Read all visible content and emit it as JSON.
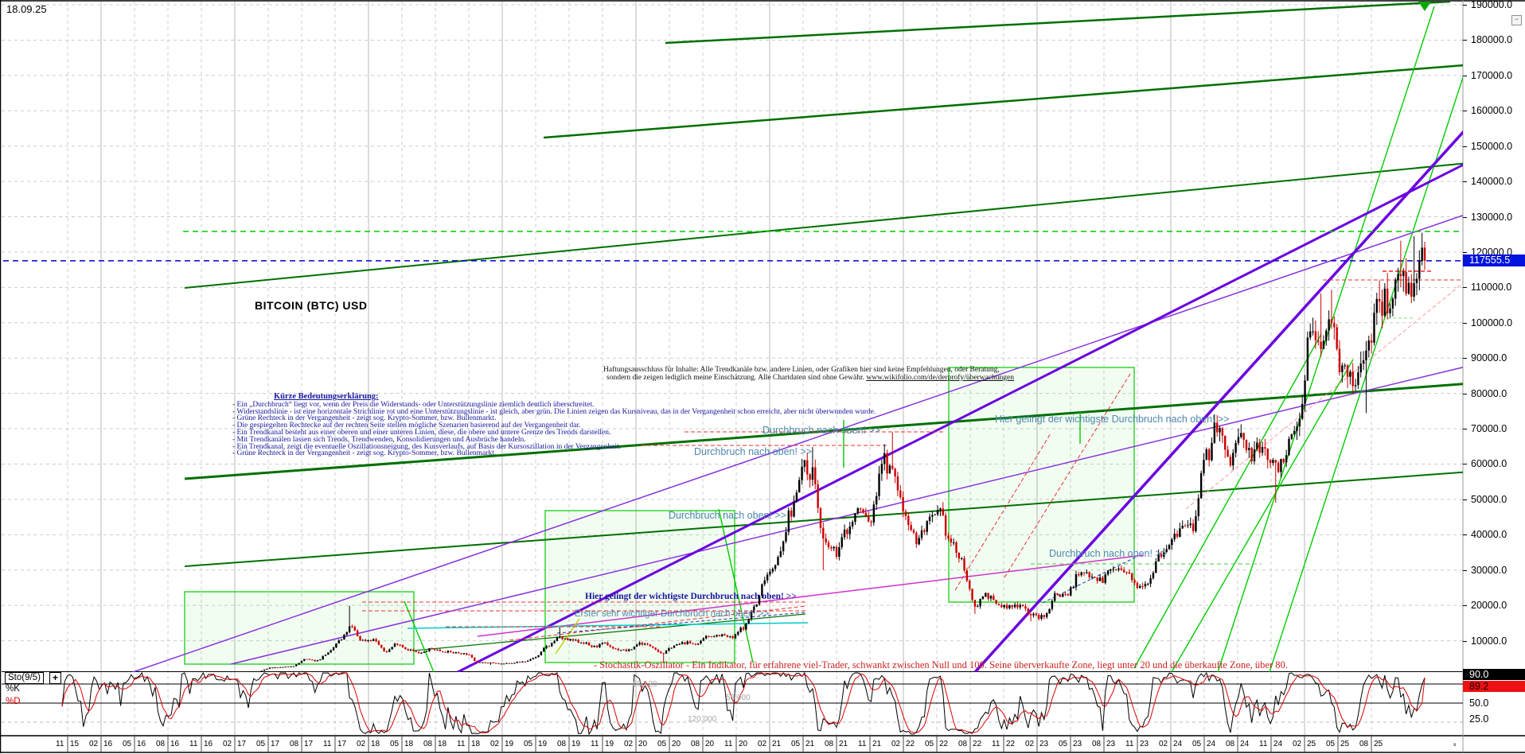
{
  "meta": {
    "date_label": "18.09.25",
    "symbol": "BITCOIN (BTC) USD",
    "current_price": "117555.5",
    "collapse_icon": "−"
  },
  "legend_block": {
    "title": "Kürze Bedeutungserklärung:",
    "lines": [
      "- Ein „Durchbruch“ liegt vor, wenn der Preis die Widerstands- oder Unterstützungslinie ziemlich deutlich überschreitet.",
      "- Widerstandslinie - ist eine horizontale Strichlinie rot und eine Unterstützungslinie - ist gleich, aber grün. Die Linien zeigen das Kursniveau, das in der Vergangenheit schon erreicht, aber nicht überwunden wurde.",
      "- Grüne Rechteck in der Vergangenheit - zeigt sog. Krypto-Sommer, bzw. Bullenmarkt.",
      "- Die gespiegelten Rechtecke auf der rechten Seite stellen mögliche Szenarien basierend auf der Vergangenheit dar.",
      "- Ein Trendkanal besteht aus einer oberen und einer unteren Linien, diese, die obere und untere Grenze des Trends darstellen.",
      "- Mit Trendkanälen lassen sich Trends, Trendwenden, Konsolidierungen und Ausbrüche handeln.",
      "- Ein Trendkanal, zeigt die eventuelle Oszillationsneigung, des Kursverlaufs, auf Basis der Kursoszillation in der Vergangenheit.",
      "- Grüne Rechteck in der Vergangenheit - zeigt sog. Krypto-Sommer, bzw. Bullenmarkt."
    ]
  },
  "disclaimer": {
    "line1": "Haftungsausschluss für Inhalte: Alle Trendkanäle bzw. andere Linien, oder Grafiken hier sind keine Empfehlungen, oder Beratung,",
    "line2a": "sondern die zeigen lediglich meine  Einschätzung. Alle Chartdaten sind ohne Gewähr.  ",
    "line2b": "www.wikifolio.com/de/derprofy/überwachungen"
  },
  "annotations": {
    "a1": "Hier gelingt der wichtigste Durchbruch nach oben! >>",
    "a2": "Durchbruch nach oben! >>",
    "a3": "Durchbruch nach oben! >>",
    "a4": "Durchbruch nach oben! >>",
    "a5": "Durchbruch nach oben! >>",
    "a6": "Hier gelingt der wichtigste Durchbruch nach oben! >>",
    "a7": "Erster sehr wichtiger Durchbruch nach oben! >>"
  },
  "stoch_note": "- Stochastik-Oszillator - Ein Indikator, für erfahrene viel-Trader, schwankt zwischen Null und 100. Seine überverkaufte Zone, liegt unter 20 und die überkaufte Zone, über 80.",
  "indicator": {
    "label": "Sto(9/5)",
    "plus": "+",
    "k_label": "%K",
    "d_label": "%D",
    "k_value": "90.0",
    "d_value": "89.2",
    "tick_mid": "50.0",
    "tick_low": "25.0",
    "faint_values": [
      "60.120",
      "56.000",
      "120.000"
    ],
    "minus": "-"
  },
  "axis": {
    "price_ticks": [
      "190000.0",
      "180000.0",
      "170000.0",
      "160000.0",
      "150000.0",
      "140000.0",
      "130000.0",
      "120000.0",
      "110000.0",
      "100000.0",
      "90000.0",
      "80000.0",
      "70000.0",
      "60000.0",
      "50000.0",
      "40000.0",
      "30000.0",
      "20000.0",
      "10000.0"
    ],
    "x_labels": [
      "11/15",
      "02/16",
      "05/16",
      "08/16",
      "11/16",
      "02/17",
      "05/17",
      "08/17",
      "11/17",
      "02/18",
      "05/18",
      "08/18",
      "11/18",
      "02/19",
      "05/19",
      "08/19",
      "11/19",
      "02/20",
      "05/20",
      "08/20",
      "11/20",
      "02/21",
      "05/21",
      "08/21",
      "11/21",
      "02/22",
      "05/22",
      "08/22",
      "11/22",
      "02/23",
      "05/23",
      "08/23",
      "11/23",
      "02/24",
      "05/24",
      "08/24",
      "11/24",
      "02/25",
      "05/25",
      "08/25"
    ],
    "x_end_label": "-"
  },
  "colors": {
    "grid": "#cccccc",
    "grid_year": "#b8b8b8",
    "dark_green": "#007000",
    "bright_green": "#00cc00",
    "purple_thick": "#6a00e0",
    "purple_thin": "#8833dd",
    "magenta": "#cc33cc",
    "cyan": "#00cccc",
    "yellow": "#cccc00",
    "red_dash": "#e83030",
    "pink_dash": "#ff9999",
    "navy_dash": "#2233bb",
    "candle_up": "#000000",
    "candle_down": "#cc0000",
    "price_line_blue": "#0000cc",
    "level_green": "#00cc00",
    "stoch_k": "#000000",
    "stoch_d": "#dd0000"
  },
  "chart_data": {
    "type": "candlestick",
    "title": "BITCOIN (BTC) USD",
    "interval": "weekly (generated from monthly anchors)",
    "x_range": [
      "11/15",
      "09/25"
    ],
    "ylim": [
      0,
      192000
    ],
    "y_tick_step": 10000,
    "current_price": 117555.5,
    "levels": {
      "blue_dashed_current": 117555.5,
      "green_dashed_resistance": 125850,
      "stoch_lines": [
        80,
        50,
        20
      ]
    },
    "monthly": [
      [
        "11/15",
        378
      ],
      [
        "12/15",
        430
      ],
      [
        "01/16",
        368
      ],
      [
        "02/16",
        437
      ],
      [
        "03/16",
        416
      ],
      [
        "04/16",
        448
      ],
      [
        "05/16",
        531
      ],
      [
        "06/16",
        673
      ],
      [
        "07/16",
        624
      ],
      [
        "08/16",
        575
      ],
      [
        "09/16",
        610
      ],
      [
        "10/16",
        700
      ],
      [
        "11/16",
        745
      ],
      [
        "12/16",
        963
      ],
      [
        "01/17",
        970
      ],
      [
        "02/17",
        1180
      ],
      [
        "03/17",
        1080
      ],
      [
        "04/17",
        1350
      ],
      [
        "05/17",
        2300
      ],
      [
        "06/17",
        2480
      ],
      [
        "07/17",
        2875
      ],
      [
        "08/17",
        4703
      ],
      [
        "09/17",
        4360
      ],
      [
        "10/17",
        6450
      ],
      [
        "11/17",
        9916
      ],
      [
        "12/17",
        13850,
        19891,
        null
      ],
      [
        "01/18",
        10100
      ],
      [
        "02/18",
        10300
      ],
      [
        "03/18",
        6930
      ],
      [
        "04/18",
        9240
      ],
      [
        "05/18",
        7500
      ],
      [
        "06/18",
        6400
      ],
      [
        "07/18",
        7730
      ],
      [
        "08/18",
        7030
      ],
      [
        "09/18",
        6600
      ],
      [
        "10/18",
        6300
      ],
      [
        "11/18",
        4017
      ],
      [
        "12/18",
        3690,
        null,
        3150
      ],
      [
        "01/19",
        3437
      ],
      [
        "02/19",
        3816
      ],
      [
        "03/19",
        4092
      ],
      [
        "04/19",
        5320
      ],
      [
        "05/19",
        8550
      ],
      [
        "06/19",
        10760,
        13880,
        null
      ],
      [
        "07/19",
        10080
      ],
      [
        "08/19",
        9630
      ],
      [
        "09/19",
        8290
      ],
      [
        "10/19",
        9150
      ],
      [
        "11/19",
        7550
      ],
      [
        "12/19",
        7190
      ],
      [
        "01/20",
        9350
      ],
      [
        "02/20",
        8543
      ],
      [
        "03/20",
        6430,
        null,
        3850
      ],
      [
        "04/20",
        8650
      ],
      [
        "05/20",
        9450
      ],
      [
        "06/20",
        9140
      ],
      [
        "07/20",
        11350
      ],
      [
        "08/20",
        11650
      ],
      [
        "09/20",
        10780
      ],
      [
        "10/20",
        13800
      ],
      [
        "11/20",
        19700
      ],
      [
        "12/20",
        28990
      ],
      [
        "01/21",
        33100
      ],
      [
        "02/21",
        45140
      ],
      [
        "03/21",
        58780
      ],
      [
        "04/21",
        57750,
        64800,
        null
      ],
      [
        "05/21",
        37330,
        null,
        30000
      ],
      [
        "06/21",
        35040
      ],
      [
        "07/21",
        41460
      ],
      [
        "08/21",
        47110
      ],
      [
        "09/21",
        43790
      ],
      [
        "10/21",
        61320
      ],
      [
        "11/21",
        57000,
        69000,
        null
      ],
      [
        "12/21",
        46210
      ],
      [
        "01/22",
        38480
      ],
      [
        "02/22",
        43190
      ],
      [
        "03/22",
        45540
      ],
      [
        "04/22",
        37710
      ],
      [
        "05/22",
        31790
      ],
      [
        "06/22",
        19940,
        null,
        17600
      ],
      [
        "07/22",
        23300
      ],
      [
        "08/22",
        20050
      ],
      [
        "09/22",
        19430
      ],
      [
        "10/22",
        20490
      ],
      [
        "11/22",
        17160,
        null,
        15480
      ],
      [
        "12/22",
        16540
      ],
      [
        "01/23",
        23130
      ],
      [
        "02/23",
        23140
      ],
      [
        "03/23",
        28470
      ],
      [
        "04/23",
        29250
      ],
      [
        "05/23",
        27220
      ],
      [
        "06/23",
        30470
      ],
      [
        "07/23",
        29230
      ],
      [
        "08/23",
        25930
      ],
      [
        "09/23",
        26970
      ],
      [
        "10/23",
        34660
      ],
      [
        "11/23",
        37720
      ],
      [
        "12/23",
        42270
      ],
      [
        "01/24",
        42580
      ],
      [
        "02/24",
        61200
      ],
      [
        "03/24",
        71330,
        73700,
        null
      ],
      [
        "04/24",
        60640
      ],
      [
        "05/24",
        67540
      ],
      [
        "06/24",
        62670
      ],
      [
        "07/24",
        64620
      ],
      [
        "08/24",
        58970,
        null,
        49050
      ],
      [
        "09/24",
        63330
      ],
      [
        "10/24",
        70220
      ],
      [
        "11/24",
        96450,
        99800,
        null
      ],
      [
        "12/24",
        93430,
        108300,
        null
      ],
      [
        "01/25",
        102400,
        109350,
        null
      ],
      [
        "02/25",
        84350
      ],
      [
        "03/25",
        82550
      ],
      [
        "04/25",
        94180,
        null,
        74450
      ],
      [
        "05/25",
        104600,
        111980,
        null
      ],
      [
        "06/25",
        107140
      ],
      [
        "07/25",
        115800,
        123230,
        null
      ],
      [
        "08/25",
        108240,
        124500,
        null
      ],
      [
        "09/25",
        117555.5
      ]
    ],
    "stochastic": {
      "label": "Sto(9/5)",
      "percent_k": 90.0,
      "percent_d": 89.2
    }
  }
}
